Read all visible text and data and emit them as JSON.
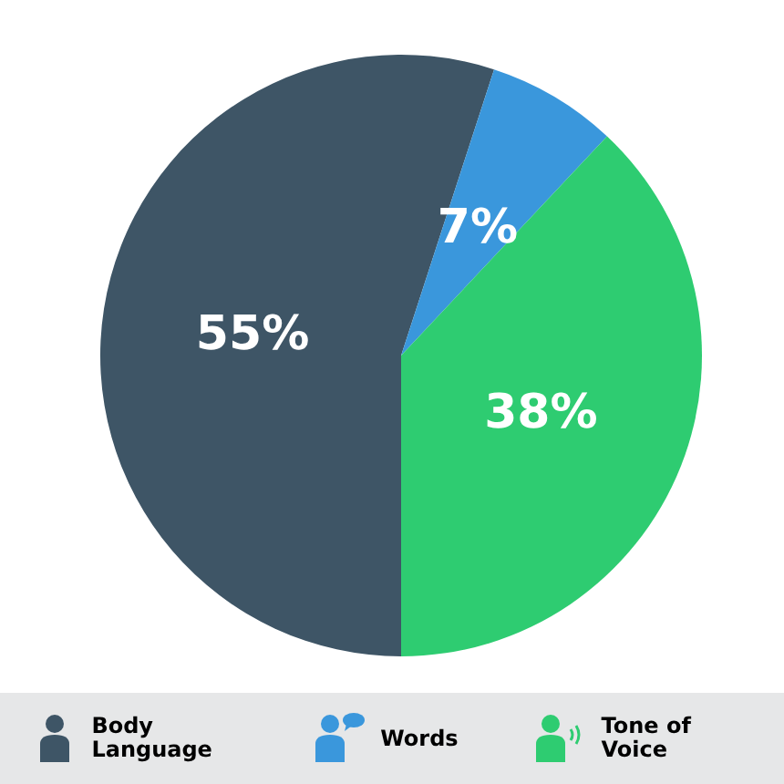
{
  "chart_data": {
    "type": "pie",
    "categories": [
      "Body Language",
      "Words",
      "Tone of Voice"
    ],
    "values": [
      55,
      7,
      38
    ],
    "colors": [
      "#3e5566",
      "#3a97dc",
      "#2ecc71"
    ],
    "value_labels": [
      "55%",
      "7%",
      "38%"
    ],
    "legend": "bottom"
  }
}
